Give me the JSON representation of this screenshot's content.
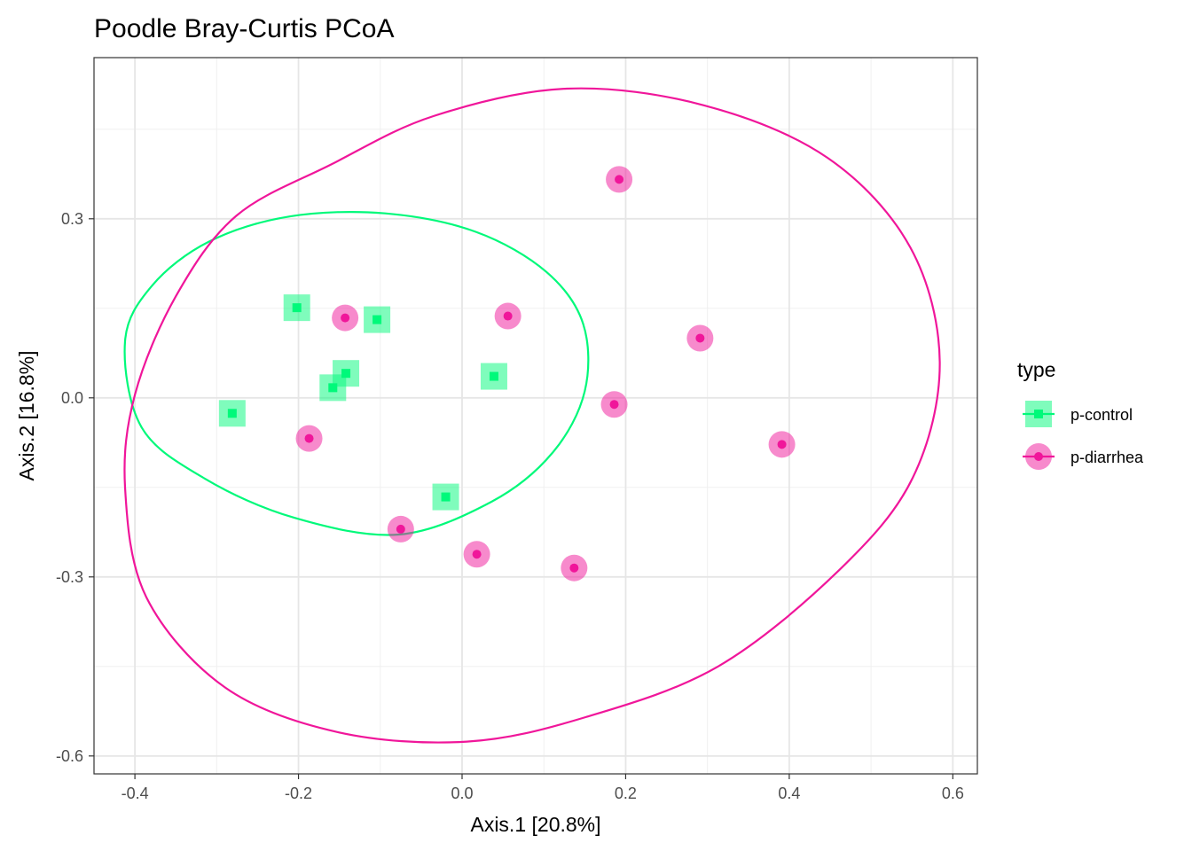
{
  "chart_data": {
    "type": "scatter",
    "title": "Poodle Bray-Curtis PCoA",
    "xlabel": "Axis.1   [20.8%]",
    "ylabel": "Axis.2   [16.8%]",
    "xlim": [
      -0.45,
      0.63
    ],
    "ylim": [
      -0.63,
      0.57
    ],
    "x_ticks": [
      -0.4,
      -0.2,
      0.0,
      0.2,
      0.4,
      0.6
    ],
    "x_tick_labels": [
      "-0.4",
      "-0.2",
      "0.0",
      "0.2",
      "0.4",
      "0.6"
    ],
    "y_ticks": [
      0.3,
      0.0,
      -0.3,
      -0.6
    ],
    "y_tick_labels": [
      "0.3",
      "0.0",
      "-0.3",
      "-0.6"
    ],
    "grid": true,
    "legend": {
      "title": "type",
      "position": "right",
      "items": [
        {
          "label": "p-control",
          "color": "#00f97a",
          "shape": "square"
        },
        {
          "label": "p-diarrhea",
          "color": "#f0169a",
          "shape": "circle"
        }
      ]
    },
    "series": [
      {
        "name": "p-control",
        "color": "#00f97a",
        "shape": "square",
        "points": [
          {
            "x": -0.202,
            "y": 0.151
          },
          {
            "x": -0.104,
            "y": 0.131
          },
          {
            "x": -0.142,
            "y": 0.041
          },
          {
            "x": -0.158,
            "y": 0.017
          },
          {
            "x": -0.281,
            "y": -0.026
          },
          {
            "x": 0.039,
            "y": 0.036
          },
          {
            "x": -0.02,
            "y": -0.166
          }
        ],
        "ellipse": [
          [
            -0.412,
            0.095
          ],
          [
            -0.379,
            0.188
          ],
          [
            -0.309,
            0.262
          ],
          [
            -0.21,
            0.304
          ],
          [
            -0.094,
            0.309
          ],
          [
            0.017,
            0.278
          ],
          [
            0.103,
            0.211
          ],
          [
            0.148,
            0.124
          ],
          [
            0.15,
            0.011
          ],
          [
            0.11,
            -0.093
          ],
          [
            0.036,
            -0.174
          ],
          [
            -0.077,
            -0.229
          ],
          [
            -0.205,
            -0.201
          ],
          [
            -0.315,
            -0.135
          ],
          [
            -0.392,
            -0.049
          ]
        ]
      },
      {
        "name": "p-diarrhea",
        "color": "#f0169a",
        "shape": "circle",
        "points": [
          {
            "x": 0.192,
            "y": 0.366
          },
          {
            "x": -0.143,
            "y": 0.134
          },
          {
            "x": 0.056,
            "y": 0.137
          },
          {
            "x": 0.291,
            "y": 0.1
          },
          {
            "x": 0.186,
            "y": -0.011
          },
          {
            "x": 0.391,
            "y": -0.078
          },
          {
            "x": -0.187,
            "y": -0.068
          },
          {
            "x": -0.075,
            "y": -0.22
          },
          {
            "x": 0.018,
            "y": -0.262
          },
          {
            "x": 0.137,
            "y": -0.285
          }
        ],
        "ellipse": [
          [
            -0.276,
            0.305
          ],
          [
            -0.16,
            0.391
          ],
          [
            -0.035,
            0.472
          ],
          [
            0.128,
            0.518
          ],
          [
            0.296,
            0.49
          ],
          [
            0.447,
            0.402
          ],
          [
            0.548,
            0.252
          ],
          [
            0.584,
            0.06
          ],
          [
            0.551,
            -0.134
          ],
          [
            0.46,
            -0.29
          ],
          [
            0.313,
            -0.45
          ],
          [
            0.151,
            -0.535
          ],
          [
            0.006,
            -0.576
          ],
          [
            -0.152,
            -0.56
          ],
          [
            -0.29,
            -0.485
          ],
          [
            -0.386,
            -0.334
          ],
          [
            -0.412,
            -0.15
          ],
          [
            -0.4,
            0.005
          ],
          [
            -0.35,
            0.17
          ]
        ]
      }
    ]
  }
}
